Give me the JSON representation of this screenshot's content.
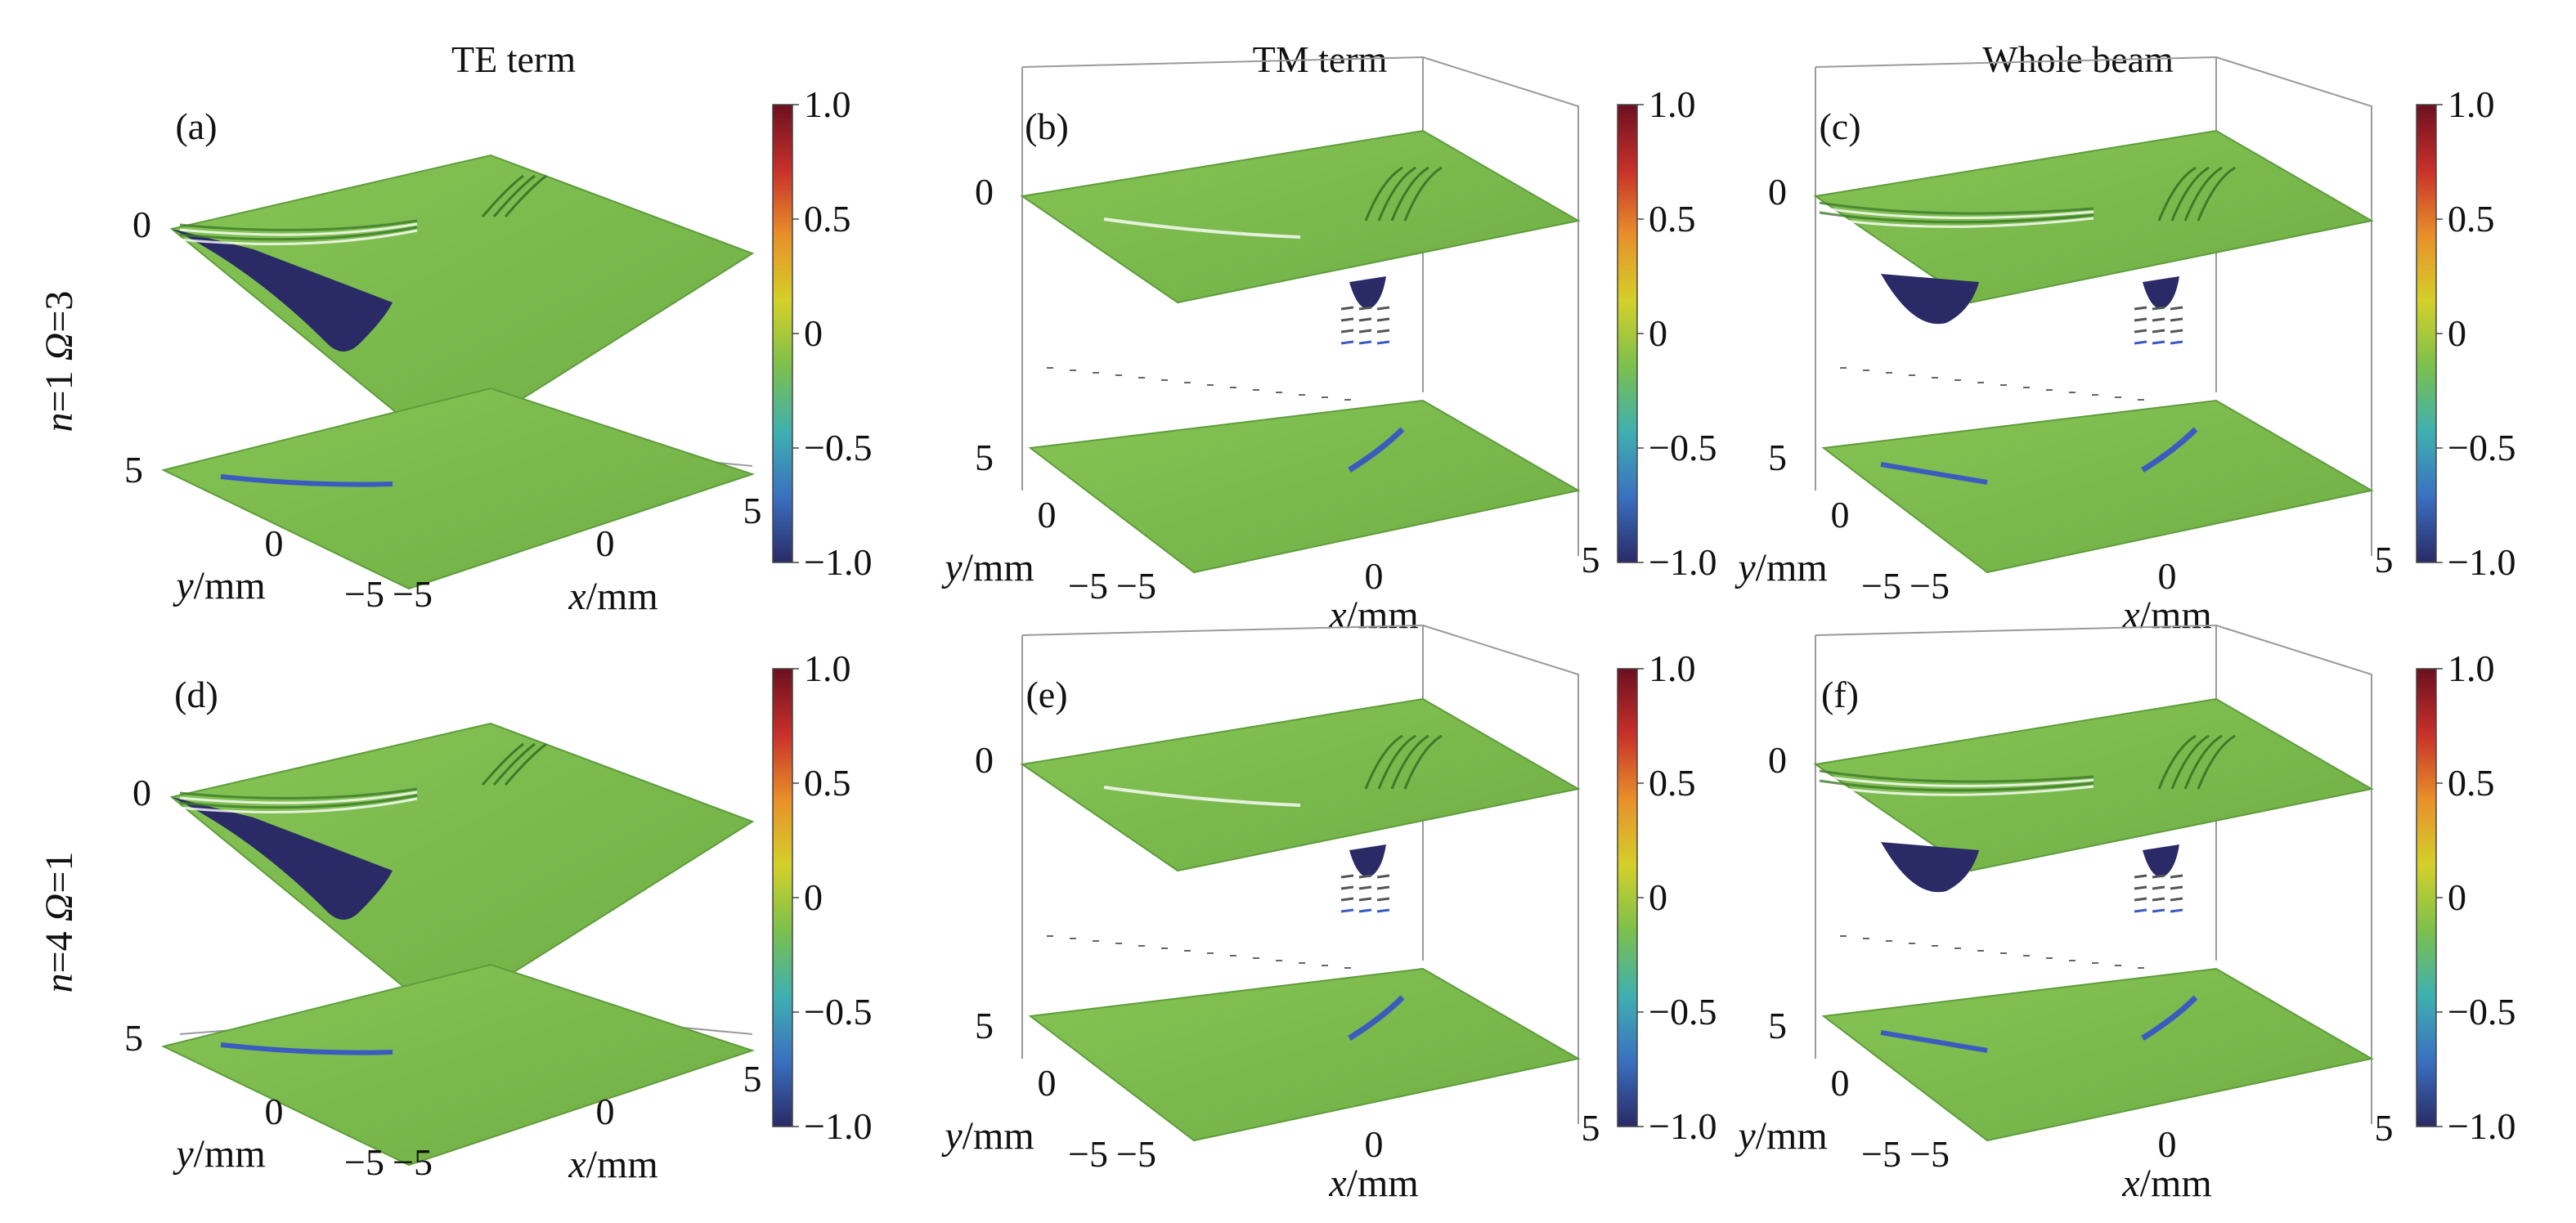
{
  "column_titles": [
    "TE term",
    "TM term",
    "Whole beam"
  ],
  "row_labels": [
    {
      "n": "n",
      "n_value": "=1 ",
      "omega": "Ω",
      "omega_value": "=3"
    },
    {
      "n": "n",
      "n_value": "=4 ",
      "omega": "Ω",
      "omega_value": "=1"
    }
  ],
  "colors": {
    "plane_fill": "#78b84a",
    "plane_edge": "#5f9c3c",
    "dip_dark": "#2a2a66",
    "streak_blue": "#3a5bbf",
    "box_line": "#9a9a9a"
  },
  "colormap": {
    "ticks": [
      "1.0",
      "0.5",
      "0",
      "−0.5",
      "−1.0"
    ],
    "stops": [
      "#6b1020",
      "#c8302a",
      "#e8902a",
      "#d4d02a",
      "#7cc04c",
      "#3fb0b0",
      "#3a70c0",
      "#2a2a66"
    ]
  },
  "chart_data": [
    {
      "type": "surface3d",
      "panel_label": "(a)",
      "column": "TE term",
      "row": "n=1 Ω=3",
      "xlabel": "x/mm",
      "ylabel": "y/mm",
      "zticks": [
        "0",
        "5"
      ],
      "xticks": [
        "−5",
        "0",
        "5"
      ],
      "yticks": [
        "−5",
        "0"
      ],
      "colorbar": {
        "range": [
          -1.0,
          1.0
        ],
        "ticks": [
          "1.0",
          "0.5",
          "0",
          "−0.5",
          "−1.0"
        ]
      }
    },
    {
      "type": "surface3d",
      "panel_label": "(b)",
      "column": "TM term",
      "row": "n=1 Ω=3",
      "xlabel": "x/mm",
      "ylabel": "y/mm",
      "zticks": [
        "0",
        "5"
      ],
      "xticks": [
        "−5",
        "0",
        "5"
      ],
      "yticks": [
        "−5",
        "0"
      ],
      "colorbar": {
        "range": [
          -1.0,
          1.0
        ],
        "ticks": [
          "1.0",
          "0.5",
          "0",
          "−0.5",
          "−1.0"
        ]
      }
    },
    {
      "type": "surface3d",
      "panel_label": "(c)",
      "column": "Whole beam",
      "row": "n=1 Ω=3",
      "xlabel": "x/mm",
      "ylabel": "y/mm",
      "zticks": [
        "0",
        "5"
      ],
      "xticks": [
        "−5",
        "0",
        "5"
      ],
      "yticks": [
        "−5",
        "0"
      ],
      "colorbar": {
        "range": [
          -1.0,
          1.0
        ],
        "ticks": [
          "1.0",
          "0.5",
          "0",
          "−0.5",
          "−1.0"
        ]
      }
    },
    {
      "type": "surface3d",
      "panel_label": "(d)",
      "column": "TE term",
      "row": "n=4 Ω=1",
      "xlabel": "x/mm",
      "ylabel": "y/mm",
      "zticks": [
        "0",
        "5"
      ],
      "xticks": [
        "−5",
        "0",
        "5"
      ],
      "yticks": [
        "−5",
        "0"
      ],
      "colorbar": {
        "range": [
          -1.0,
          1.0
        ],
        "ticks": [
          "1.0",
          "0.5",
          "0",
          "−0.5",
          "−1.0"
        ]
      }
    },
    {
      "type": "surface3d",
      "panel_label": "(e)",
      "column": "TM term",
      "row": "n=4 Ω=1",
      "xlabel": "x/mm",
      "ylabel": "y/mm",
      "zticks": [
        "0",
        "5"
      ],
      "xticks": [
        "−5",
        "0",
        "5"
      ],
      "yticks": [
        "−5",
        "0"
      ],
      "colorbar": {
        "range": [
          -1.0,
          1.0
        ],
        "ticks": [
          "1.0",
          "0.5",
          "0",
          "−0.5",
          "−1.0"
        ]
      }
    },
    {
      "type": "surface3d",
      "panel_label": "(f)",
      "column": "Whole beam",
      "row": "n=4 Ω=1",
      "xlabel": "x/mm",
      "ylabel": "y/mm",
      "zticks": [
        "0",
        "5"
      ],
      "xticks": [
        "−5",
        "0",
        "5"
      ],
      "yticks": [
        "−5",
        "0"
      ],
      "colorbar": {
        "range": [
          -1.0,
          1.0
        ],
        "ticks": [
          "1.0",
          "0.5",
          "0",
          "−0.5",
          "−1.0"
        ]
      }
    }
  ]
}
